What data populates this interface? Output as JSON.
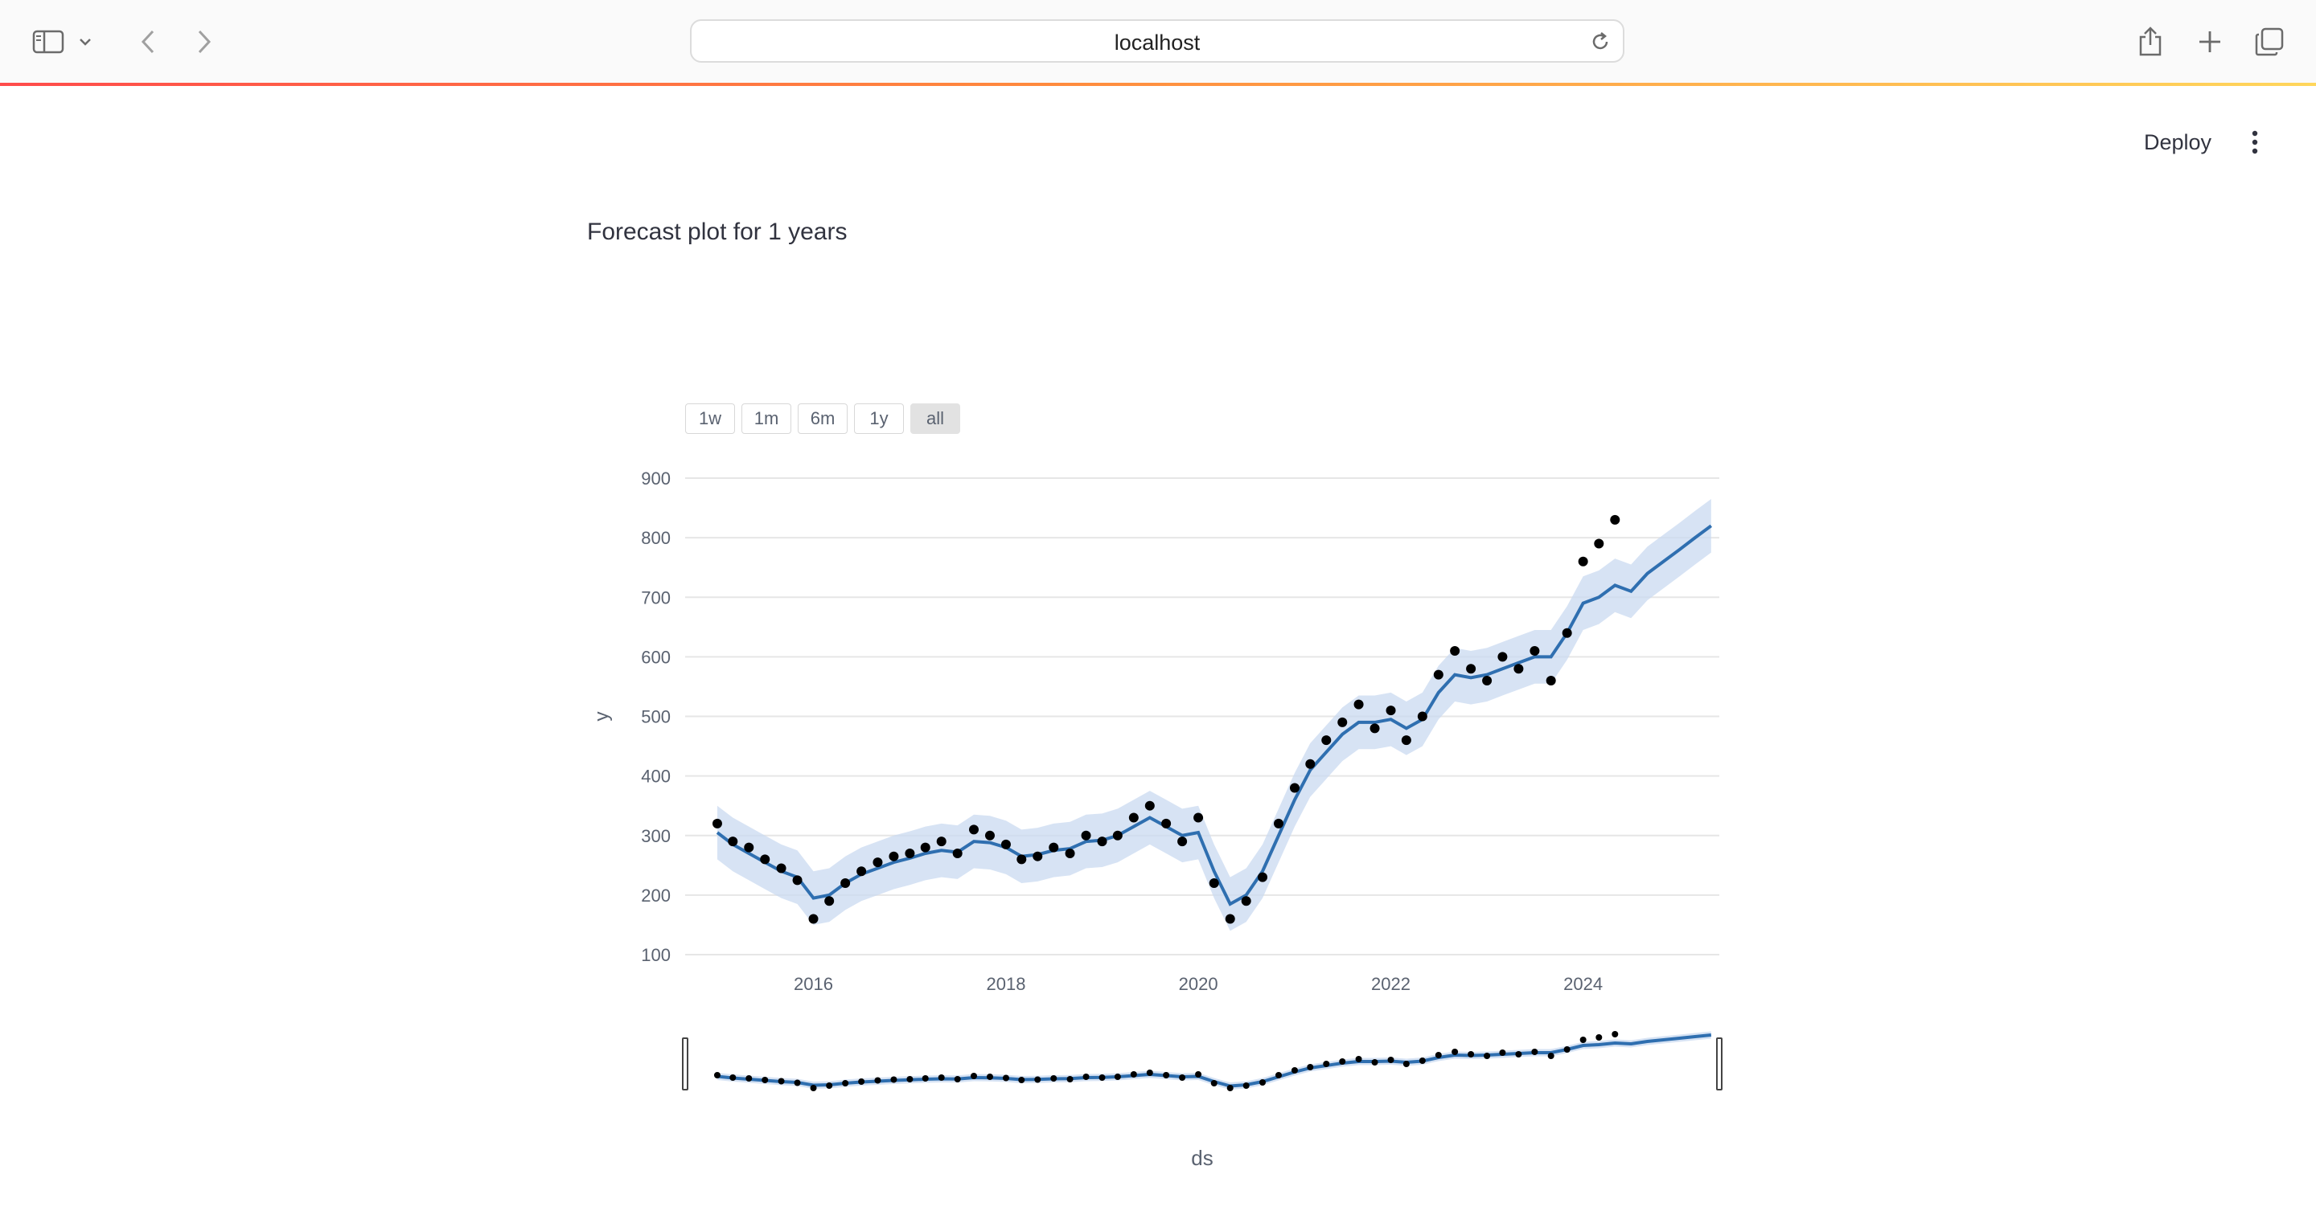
{
  "browser": {
    "address": "localhost",
    "icons": [
      "sidebar-icon",
      "chevron-down-icon",
      "back-icon",
      "forward-icon",
      "reload-icon",
      "share-icon",
      "plus-icon",
      "tabs-icon"
    ]
  },
  "app": {
    "deploy_label": "Deploy",
    "menu_icon": "kebab-menu-icon",
    "title": "Forecast plot for 1 years"
  },
  "range_selector": {
    "buttons": [
      "1w",
      "1m",
      "6m",
      "1y",
      "all"
    ],
    "active": "all"
  },
  "colors": {
    "accent_gradient": [
      "#ff4b4b",
      "#ff8a3d",
      "#ffd65c"
    ],
    "actual_points": "#000000",
    "forecast_line": "#2f6fb0",
    "uncertainty_band": "#c9d9f0"
  },
  "chart_data": {
    "type": "scatter",
    "xlabel": "ds",
    "ylabel": "y",
    "ylim": [
      100,
      900
    ],
    "xlim": [
      "2014-09-01",
      "2025-06-01"
    ],
    "yticks": [
      100,
      200,
      300,
      400,
      500,
      600,
      700,
      800,
      900
    ],
    "xticks": [
      "2016",
      "2018",
      "2020",
      "2022",
      "2024"
    ],
    "grid": true,
    "has_rangeslider": true,
    "series": [
      {
        "type": "scatter",
        "x": [
          "2015-01-01",
          "2015-03-01",
          "2015-05-01",
          "2015-07-01",
          "2015-09-01",
          "2015-11-01",
          "2016-01-01",
          "2016-03-01",
          "2016-05-01",
          "2016-07-01",
          "2016-09-01",
          "2016-11-01",
          "2017-01-01",
          "2017-03-01",
          "2017-05-01",
          "2017-07-01",
          "2017-09-01",
          "2017-11-01",
          "2018-01-01",
          "2018-03-01",
          "2018-05-01",
          "2018-07-01",
          "2018-09-01",
          "2018-11-01",
          "2019-01-01",
          "2019-03-01",
          "2019-05-01",
          "2019-07-01",
          "2019-09-01",
          "2019-11-01",
          "2020-01-01",
          "2020-03-01",
          "2020-05-01",
          "2020-07-01",
          "2020-09-01",
          "2020-11-01",
          "2021-01-01",
          "2021-03-01",
          "2021-05-01",
          "2021-07-01",
          "2021-09-01",
          "2021-11-01",
          "2022-01-01",
          "2022-03-01",
          "2022-05-01",
          "2022-07-01",
          "2022-09-01",
          "2022-11-01",
          "2023-01-01",
          "2023-03-01",
          "2023-05-01",
          "2023-07-01",
          "2023-09-01",
          "2023-11-01",
          "2024-01-01",
          "2024-03-01",
          "2024-05-01"
        ],
        "y": [
          320,
          290,
          280,
          260,
          245,
          225,
          160,
          190,
          220,
          240,
          255,
          265,
          270,
          280,
          290,
          270,
          310,
          300,
          285,
          260,
          265,
          280,
          270,
          300,
          290,
          300,
          330,
          350,
          320,
          290,
          330,
          220,
          160,
          190,
          230,
          320,
          380,
          420,
          460,
          490,
          520,
          480,
          510,
          460,
          500,
          570,
          610,
          580,
          560,
          600,
          580,
          610,
          560,
          640,
          760,
          790,
          830
        ]
      },
      {
        "type": "line",
        "x": [
          "2015-01-01",
          "2015-03-01",
          "2015-05-01",
          "2015-07-01",
          "2015-09-01",
          "2015-11-01",
          "2016-01-01",
          "2016-03-01",
          "2016-05-01",
          "2016-07-01",
          "2016-09-01",
          "2016-11-01",
          "2017-01-01",
          "2017-03-01",
          "2017-05-01",
          "2017-07-01",
          "2017-09-01",
          "2017-11-01",
          "2018-01-01",
          "2018-03-01",
          "2018-05-01",
          "2018-07-01",
          "2018-09-01",
          "2018-11-01",
          "2019-01-01",
          "2019-03-01",
          "2019-05-01",
          "2019-07-01",
          "2019-09-01",
          "2019-11-01",
          "2020-01-01",
          "2020-03-01",
          "2020-05-01",
          "2020-07-01",
          "2020-09-01",
          "2020-11-01",
          "2021-01-01",
          "2021-03-01",
          "2021-05-01",
          "2021-07-01",
          "2021-09-01",
          "2021-11-01",
          "2022-01-01",
          "2022-03-01",
          "2022-05-01",
          "2022-07-01",
          "2022-09-01",
          "2022-11-01",
          "2023-01-01",
          "2023-03-01",
          "2023-05-01",
          "2023-07-01",
          "2023-09-01",
          "2023-11-01",
          "2024-01-01",
          "2024-03-01",
          "2024-05-01",
          "2024-07-01",
          "2024-09-01",
          "2024-11-01",
          "2025-01-01",
          "2025-03-01",
          "2025-05-01"
        ],
        "y": [
          305,
          285,
          270,
          255,
          240,
          230,
          195,
          200,
          220,
          235,
          245,
          255,
          262,
          270,
          275,
          272,
          290,
          288,
          280,
          265,
          268,
          275,
          278,
          290,
          292,
          300,
          315,
          330,
          315,
          300,
          305,
          240,
          185,
          200,
          240,
          300,
          360,
          410,
          440,
          470,
          490,
          490,
          495,
          480,
          495,
          540,
          570,
          565,
          570,
          580,
          590,
          600,
          600,
          640,
          690,
          700,
          720,
          710,
          740,
          760,
          780,
          800,
          820
        ]
      }
    ]
  }
}
